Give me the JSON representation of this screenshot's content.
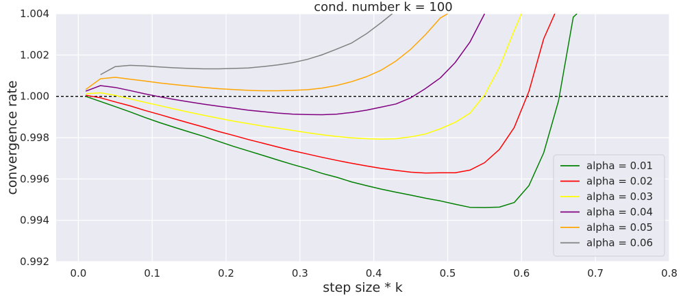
{
  "chart_data": {
    "type": "line",
    "title": "cond. number k = 100",
    "xlabel": "step size * k",
    "ylabel": "convergence rate",
    "xlim": [
      -0.03,
      0.8
    ],
    "ylim": [
      0.992,
      1.004
    ],
    "xticks": [
      0.0,
      0.1,
      0.2,
      0.3,
      0.4,
      0.5,
      0.6,
      0.7,
      0.8
    ],
    "xtick_labels": [
      "0.0",
      "0.1",
      "0.2",
      "0.3",
      "0.4",
      "0.5",
      "0.6",
      "0.7",
      "0.8"
    ],
    "yticks": [
      0.992,
      0.994,
      0.996,
      0.998,
      1.0,
      1.002,
      1.004
    ],
    "ytick_labels": [
      "0.992",
      "0.994",
      "0.996",
      "0.998",
      "1.000",
      "1.002",
      "1.004"
    ],
    "grid": true,
    "legend_position": "bottom-right",
    "background_color": "#eaeaf2",
    "reference_line": {
      "y": 1.0,
      "style": "dashed",
      "color": "#000000"
    },
    "series": [
      {
        "name": "alpha = 0.01",
        "color": "#008000",
        "x": [
          0.01,
          0.03,
          0.05,
          0.07,
          0.09,
          0.11,
          0.13,
          0.15,
          0.17,
          0.19,
          0.21,
          0.23,
          0.25,
          0.27,
          0.29,
          0.31,
          0.33,
          0.35,
          0.37,
          0.39,
          0.41,
          0.43,
          0.45,
          0.47,
          0.49,
          0.51,
          0.53,
          0.55,
          0.57,
          0.59,
          0.61,
          0.63,
          0.65,
          0.67,
          0.675
        ],
        "y": [
          1.0,
          0.99975,
          0.9995,
          0.99925,
          0.99898,
          0.99873,
          0.9985,
          0.99828,
          0.99806,
          0.99782,
          0.99758,
          0.99736,
          0.99714,
          0.99692,
          0.9967,
          0.9965,
          0.99627,
          0.99608,
          0.99586,
          0.99568,
          0.99551,
          0.99536,
          0.99522,
          0.99507,
          0.99494,
          0.99478,
          0.99463,
          0.99462,
          0.99464,
          0.99486,
          0.99568,
          0.99727,
          0.99978,
          1.00383,
          1.004
        ]
      },
      {
        "name": "alpha = 0.02",
        "color": "#ff0000",
        "x": [
          0.01,
          0.03,
          0.05,
          0.07,
          0.09,
          0.11,
          0.13,
          0.15,
          0.17,
          0.19,
          0.21,
          0.23,
          0.25,
          0.27,
          0.29,
          0.31,
          0.33,
          0.35,
          0.37,
          0.39,
          0.41,
          0.43,
          0.45,
          0.47,
          0.49,
          0.51,
          0.53,
          0.55,
          0.57,
          0.59,
          0.61,
          0.63,
          0.645
        ],
        "y": [
          1.00005,
          0.99993,
          0.99973,
          0.99954,
          0.99932,
          0.99912,
          0.99891,
          0.99871,
          0.99851,
          0.9983,
          0.99811,
          0.99791,
          0.99773,
          0.99755,
          0.99737,
          0.99721,
          0.99705,
          0.9969,
          0.99676,
          0.99663,
          0.99651,
          0.99642,
          0.99633,
          0.99629,
          0.9963,
          0.9963,
          0.99643,
          0.99679,
          0.99743,
          0.99849,
          1.00024,
          1.00279,
          1.004
        ]
      },
      {
        "name": "alpha = 0.03",
        "color": "#ffff00",
        "x": [
          0.01,
          0.03,
          0.05,
          0.07,
          0.09,
          0.11,
          0.13,
          0.15,
          0.17,
          0.19,
          0.21,
          0.23,
          0.25,
          0.27,
          0.29,
          0.31,
          0.33,
          0.35,
          0.37,
          0.39,
          0.41,
          0.43,
          0.45,
          0.47,
          0.49,
          0.51,
          0.53,
          0.55,
          0.57,
          0.59,
          0.6
        ],
        "y": [
          1.00012,
          1.00017,
          1.00005,
          0.99988,
          0.99971,
          0.99955,
          0.99939,
          0.99923,
          0.99908,
          0.99894,
          0.9988,
          0.99868,
          0.99856,
          0.99846,
          0.99835,
          0.99824,
          0.99814,
          0.99806,
          0.99799,
          0.99795,
          0.99793,
          0.99795,
          0.99804,
          0.99818,
          0.99843,
          0.99874,
          0.99918,
          1.00007,
          1.0014,
          1.00318,
          1.004
        ]
      },
      {
        "name": "alpha = 0.04",
        "color": "#800080",
        "x": [
          0.01,
          0.03,
          0.05,
          0.07,
          0.09,
          0.11,
          0.13,
          0.15,
          0.17,
          0.19,
          0.21,
          0.23,
          0.25,
          0.27,
          0.29,
          0.31,
          0.33,
          0.35,
          0.37,
          0.39,
          0.41,
          0.43,
          0.45,
          0.47,
          0.49,
          0.51,
          0.53,
          0.55
        ],
        "y": [
          1.00025,
          1.00052,
          1.00043,
          1.00028,
          1.00012,
          0.99998,
          0.99985,
          0.99973,
          0.99962,
          0.99952,
          0.99943,
          0.99933,
          0.99926,
          0.99919,
          0.99914,
          0.99912,
          0.99911,
          0.99914,
          0.99922,
          0.99933,
          0.99948,
          0.99963,
          0.99993,
          1.00038,
          1.00089,
          1.00163,
          1.00262,
          1.004
        ]
      },
      {
        "name": "alpha = 0.05",
        "color": "#ffa500",
        "x": [
          0.01,
          0.03,
          0.05,
          0.07,
          0.09,
          0.11,
          0.13,
          0.15,
          0.17,
          0.19,
          0.21,
          0.23,
          0.25,
          0.27,
          0.29,
          0.31,
          0.33,
          0.35,
          0.37,
          0.39,
          0.41,
          0.43,
          0.45,
          0.47,
          0.49,
          0.5
        ],
        "y": [
          1.00033,
          1.00085,
          1.00092,
          1.00083,
          1.00074,
          1.00065,
          1.00057,
          1.0005,
          1.00043,
          1.00037,
          1.00033,
          1.00029,
          1.00027,
          1.00027,
          1.00029,
          1.00032,
          1.0004,
          1.00053,
          1.00071,
          1.00095,
          1.00127,
          1.00171,
          1.00228,
          1.00299,
          1.00379,
          1.004
        ]
      },
      {
        "name": "alpha = 0.06",
        "color": "#808080",
        "x": [
          0.03,
          0.05,
          0.07,
          0.09,
          0.11,
          0.13,
          0.15,
          0.17,
          0.19,
          0.21,
          0.23,
          0.25,
          0.27,
          0.29,
          0.31,
          0.33,
          0.35,
          0.37,
          0.39,
          0.41,
          0.425
        ],
        "y": [
          1.00105,
          1.00144,
          1.0015,
          1.00147,
          1.00142,
          1.00138,
          1.00135,
          1.00133,
          1.00133,
          1.00135,
          1.00137,
          1.00144,
          1.00152,
          1.00163,
          1.00179,
          1.00201,
          1.00229,
          1.00258,
          1.00303,
          1.00357,
          1.004
        ]
      }
    ]
  }
}
